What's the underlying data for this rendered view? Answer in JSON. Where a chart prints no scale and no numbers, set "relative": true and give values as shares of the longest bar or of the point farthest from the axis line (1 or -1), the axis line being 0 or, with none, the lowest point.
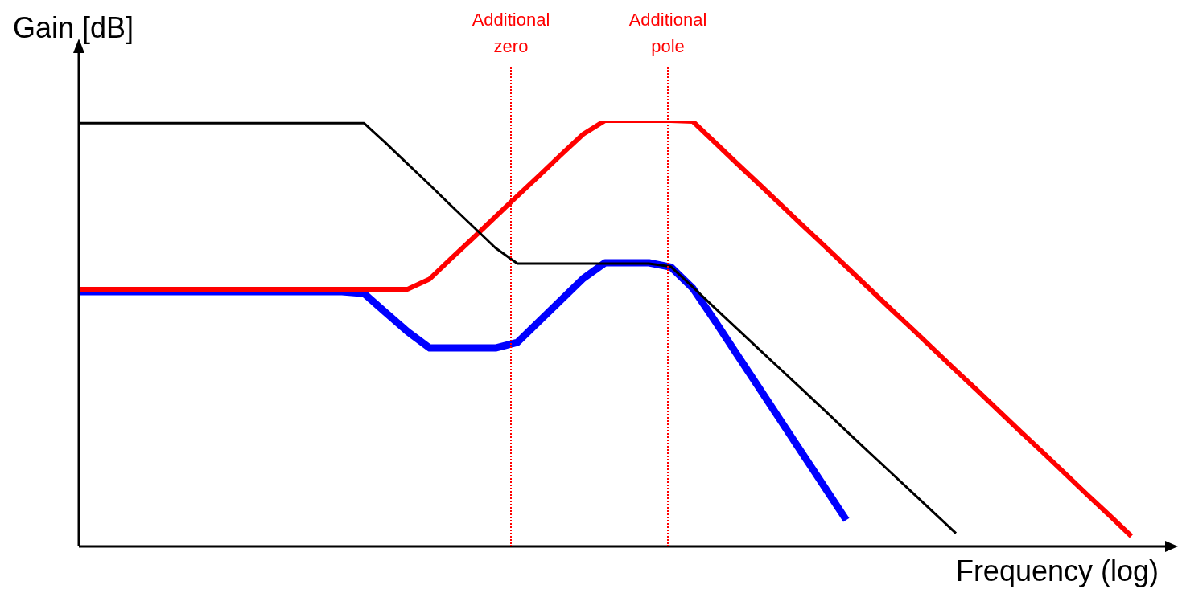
{
  "chart_data": {
    "type": "line",
    "relative": true,
    "xlabel": "Frequency (log)",
    "ylabel": "Gain [dB]",
    "categories": [
      null,
      null,
      null,
      null,
      null,
      null,
      null,
      null,
      null,
      null,
      null,
      null,
      null,
      null,
      null,
      null,
      null,
      null,
      null,
      null,
      null,
      null,
      null,
      null,
      null,
      null,
      null,
      null,
      null,
      null,
      null,
      null,
      null,
      null,
      null,
      null,
      null,
      null,
      null,
      null,
      null,
      null,
      null,
      null,
      null,
      null,
      null,
      null,
      null
    ],
    "series": [
      {
        "color": "#000000",
        "values": [
          0.994,
          0.994,
          0.994,
          0.994,
          0.994,
          0.994,
          0.994,
          0.994,
          0.994,
          0.994,
          0.994,
          0.994,
          0.994,
          0.994,
          0.947,
          0.898,
          0.849,
          0.799,
          0.75,
          0.701,
          0.664,
          0.664,
          0.664,
          0.664,
          0.664,
          0.664,
          0.664,
          0.657,
          0.609,
          0.56,
          0.512,
          0.464,
          0.416,
          0.368,
          0.32,
          0.271,
          0.223,
          0.175,
          0.127,
          0.079,
          0.031,
          null,
          null,
          null,
          null,
          null,
          null,
          null,
          null
        ]
      },
      {
        "color": "#ff0000",
        "values": [
          0.604,
          0.604,
          0.604,
          0.604,
          0.604,
          0.604,
          0.604,
          0.604,
          0.604,
          0.604,
          0.604,
          0.604,
          0.604,
          0.604,
          0.604,
          0.604,
          0.628,
          0.677,
          0.725,
          0.774,
          0.823,
          0.871,
          0.92,
          0.968,
          1,
          1,
          1,
          1,
          0.998,
          0.949,
          0.9,
          0.852,
          0.803,
          0.754,
          0.706,
          0.657,
          0.608,
          0.559,
          0.511,
          0.462,
          0.413,
          0.365,
          0.316,
          0.267,
          0.219,
          0.17,
          0.121,
          0.073,
          0.024
        ]
      },
      {
        "color": "#0000ff",
        "values": [
          0.598,
          0.598,
          0.598,
          0.598,
          0.598,
          0.598,
          0.598,
          0.598,
          0.598,
          0.598,
          0.598,
          0.598,
          0.598,
          0.594,
          0.549,
          0.504,
          0.466,
          0.466,
          0.466,
          0.466,
          0.479,
          0.529,
          0.579,
          0.629,
          0.666,
          0.666,
          0.666,
          0.656,
          0.606,
          0.53,
          0.452,
          0.374,
          0.296,
          0.218,
          0.14,
          0.062,
          null,
          null,
          null,
          null,
          null,
          null,
          null,
          null,
          null,
          null,
          null,
          null,
          null
        ]
      }
    ],
    "annotations": [
      "Additional\nzero",
      "Additional\npole"
    ]
  }
}
